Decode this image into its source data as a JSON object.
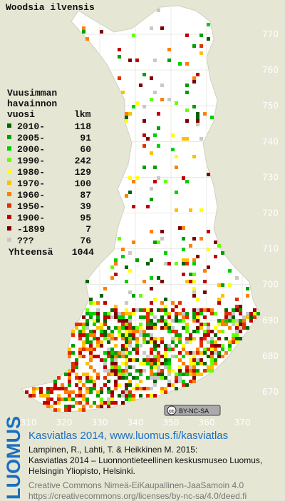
{
  "title": "Woodsia ilvensis",
  "legend": {
    "header": [
      "Vuusimman",
      "havainnon",
      "vuosi"
    ],
    "count_header": "lkm",
    "items": [
      {
        "label": "2010-",
        "count": 118,
        "color": "#006400"
      },
      {
        "label": "2005-",
        "count": 91,
        "color": "#00a000"
      },
      {
        "label": "2000-",
        "count": 60,
        "color": "#00d000"
      },
      {
        "label": "1990-",
        "count": 242,
        "color": "#66ff00"
      },
      {
        "label": "1980-",
        "count": 129,
        "color": "#ffff00"
      },
      {
        "label": "1970-",
        "count": 100,
        "color": "#ffc000"
      },
      {
        "label": "1960-",
        "count": 87,
        "color": "#ff8000"
      },
      {
        "label": "1950-",
        "count": 39,
        "color": "#e03000"
      },
      {
        "label": "1900-",
        "count": 95,
        "color": "#c00000"
      },
      {
        "label": "-1899",
        "count": 7,
        "color": "#800000"
      },
      {
        "label": "???",
        "count": 76,
        "color": "#c8c8c8"
      }
    ],
    "total_label": "Yhteensä",
    "total": 1044
  },
  "map": {
    "northing_labels": [
      770,
      760,
      750,
      740,
      730,
      720,
      710,
      700,
      690,
      680,
      670
    ],
    "easting_labels": [
      310,
      320,
      330,
      340,
      350,
      360,
      370
    ],
    "badge": {
      "cc": "cc",
      "terms": "BY-NC-SA"
    }
  },
  "footer": {
    "logo": "LUOMUS",
    "link": "Kasviatlas 2014, www.luomus.fi/kasviatlas",
    "citation": [
      "Lampinen, R., Lahti, T. & Heikkinen M. 2015:",
      "Kasviatlas 2014 – Luonnontieteellinen keskusmuseo Luomus,",
      "Helsingin Yliopisto, Helsinki."
    ],
    "license": [
      "Creative Commons Nimeä-EiKaupallinen-JaaSamoin 4.0",
      "https://creativecommons.org/licenses/by-nc-sa/4.0/deed.fi"
    ]
  }
}
